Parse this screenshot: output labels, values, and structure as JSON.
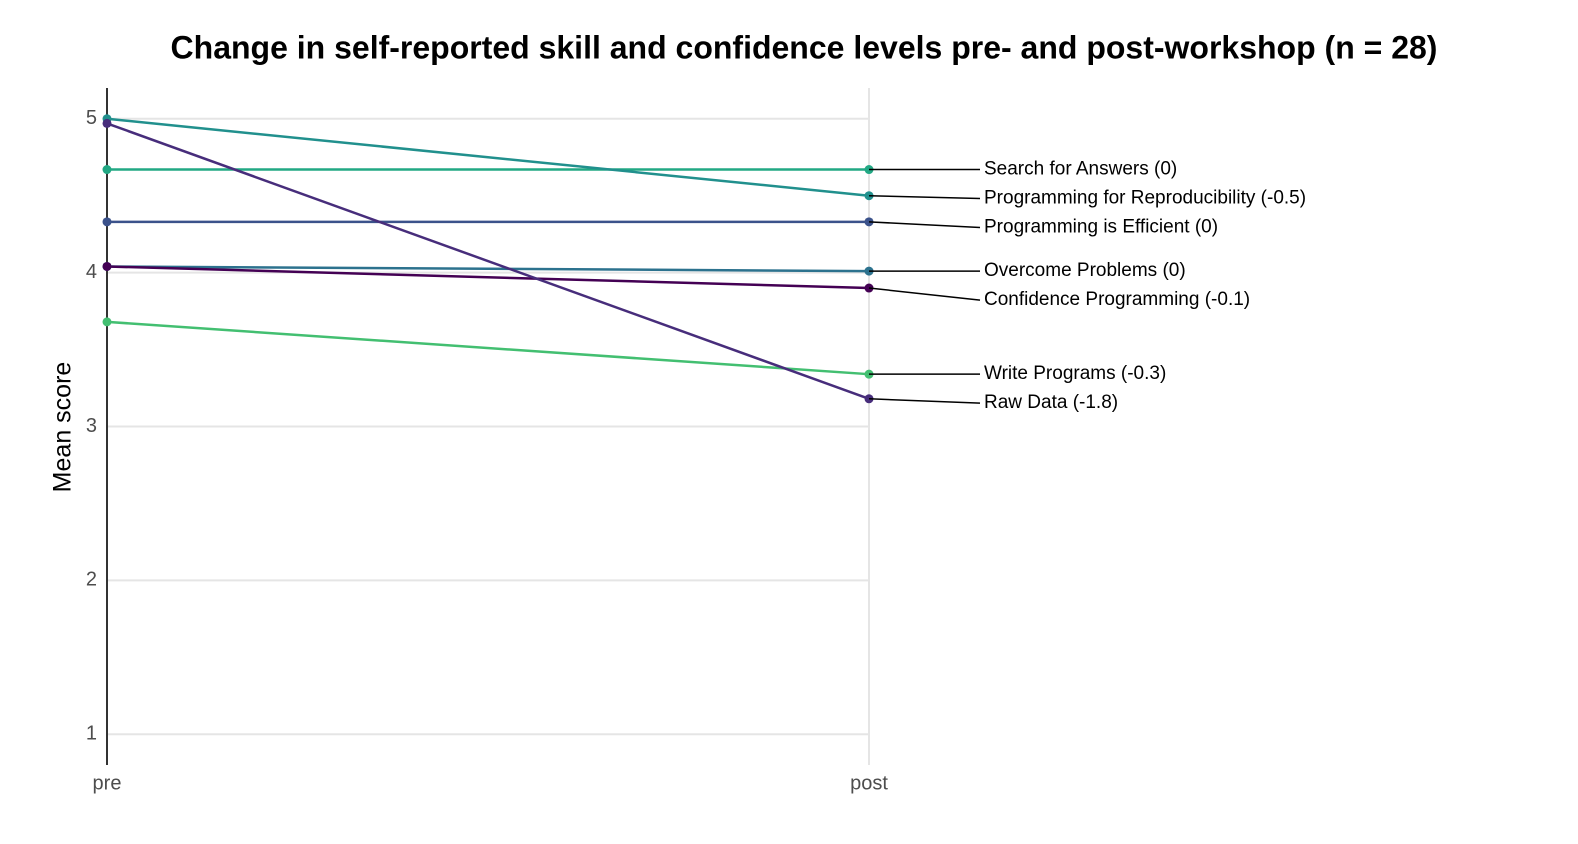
{
  "chart_data": {
    "type": "slope",
    "title": "Change in self-reported skill and confidence levels pre- and post-workshop (n = 28)",
    "y_label": "Mean score",
    "categories": [
      "pre",
      "post"
    ],
    "ylim": [
      0.8,
      5.2
    ],
    "yticks": [
      1,
      2,
      3,
      4,
      5
    ],
    "grid": true,
    "series": [
      {
        "name": "Search for Answers (0)",
        "color": "#22a884",
        "values": [
          4.67,
          4.67
        ]
      },
      {
        "name": "Programming for Reproducibility (-0.5)",
        "color": "#21908d",
        "values": [
          5.0,
          4.5
        ]
      },
      {
        "name": "Programming is Efficient (0)",
        "color": "#3b528b",
        "values": [
          4.33,
          4.33
        ]
      },
      {
        "name": "Overcome Problems (0)",
        "color": "#2c728e",
        "values": [
          4.04,
          4.01
        ]
      },
      {
        "name": "Confidence Programming (-0.1)",
        "color": "#440154",
        "values": [
          4.04,
          3.9
        ]
      },
      {
        "name": "Write Programs (-0.3)",
        "color": "#43bf71",
        "values": [
          3.68,
          3.34
        ]
      },
      {
        "name": "Raw Data (-1.8)",
        "color": "#472d7b",
        "values": [
          4.97,
          3.18
        ]
      }
    ]
  }
}
